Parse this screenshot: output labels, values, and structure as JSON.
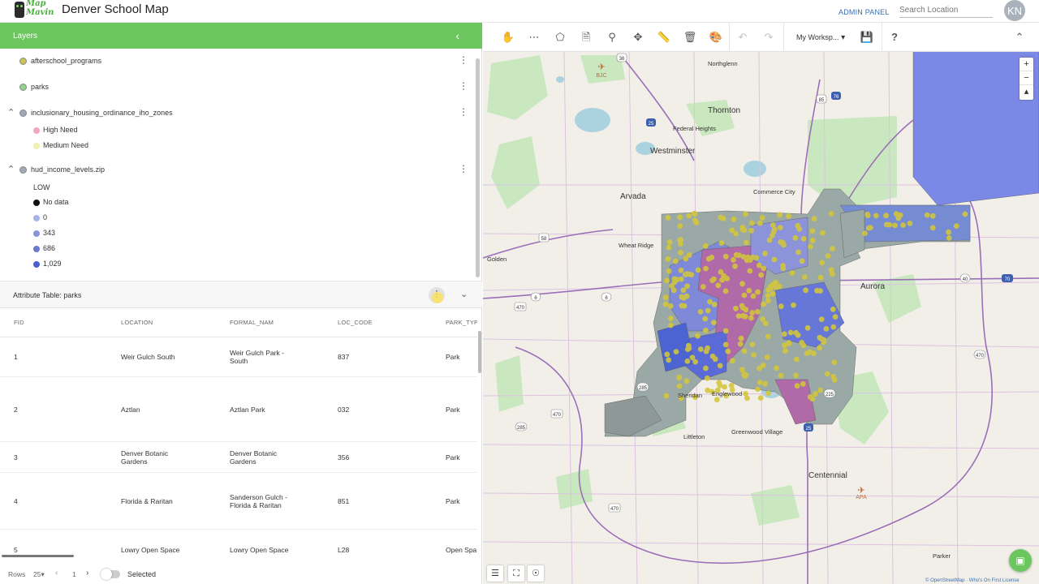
{
  "header": {
    "logo_text": "Map Mavin",
    "title": "Denver School Map",
    "admin_label": "ADMIN PANEL",
    "search_placeholder": "Search Location",
    "avatar_initials": "KN"
  },
  "layers_panel": {
    "title": "Layers",
    "layers": [
      {
        "name": "afterschool_programs",
        "color": "#c9c257"
      },
      {
        "name": "parks",
        "color": "#8fd38a"
      },
      {
        "name": "inclusionary_housing_ordinance_iho_zones",
        "color": "#a3a8b8"
      },
      {
        "name": "hud_income_levels.zip",
        "color": "#a3a8b8"
      }
    ],
    "iho_legend": [
      {
        "label": "High Need",
        "color": "#f2a7c0"
      },
      {
        "label": "Medium Need",
        "color": "#f0f0b0"
      }
    ],
    "hud_legend_title": "LOW",
    "hud_legend": [
      {
        "label": "No data",
        "color": "#111111"
      },
      {
        "label": "0",
        "color": "#a5b4e8"
      },
      {
        "label": "343",
        "color": "#8696dc"
      },
      {
        "label": "686",
        "color": "#6b79cf"
      },
      {
        "label": "1,029",
        "color": "#4a5fd0"
      }
    ]
  },
  "attribute_table": {
    "title": "Attribute Table: parks",
    "columns": [
      "FID",
      "LOCATION",
      "FORMAL_NAM",
      "LOC_CODE",
      "PARK_TYP"
    ],
    "rows": [
      {
        "fid": "1",
        "location": "Weir Gulch South",
        "formal": "Weir Gulch Park - South",
        "code": "837",
        "type": "Park"
      },
      {
        "fid": "2",
        "location": "Aztlan",
        "formal": "Aztlan Park",
        "code": "032",
        "type": "Park"
      },
      {
        "fid": "3",
        "location": "Denver Botanic Gardens",
        "formal": "Denver Botanic Gardens",
        "code": "356",
        "type": "Park"
      },
      {
        "fid": "4",
        "location": "Florida & Raritan",
        "formal": "Sanderson Gulch - Florida & Raritan",
        "code": "851",
        "type": "Park"
      },
      {
        "fid": "5",
        "location": "Lowry Open Space",
        "formal": "Lowry Open Space",
        "code": "L28",
        "type": "Open Spa"
      }
    ],
    "pager": {
      "rows_label": "Rows",
      "rows_value": "25",
      "page": "1",
      "selected_label": "Selected"
    }
  },
  "toolbar": {
    "workspace_label": "My Worksp..."
  },
  "map": {
    "place_labels": [
      "Northglenn",
      "Thornton",
      "Federal Heights",
      "Westminster",
      "Commerce City",
      "Arvada",
      "Wheat Ridge",
      "Golden",
      "Aurora",
      "Englewood",
      "Sheridan",
      "Littleton",
      "Greenwood Village",
      "Centennial",
      "Parker"
    ],
    "airports": [
      "BJC",
      "APA"
    ],
    "highway_shields": [
      "36",
      "85",
      "76",
      "25",
      "58",
      "6",
      "6",
      "470",
      "70",
      "40",
      "225",
      "470",
      "285",
      "470",
      "25",
      "285",
      "470"
    ],
    "attribution": "© OpenStreetMap · Who's On First License"
  }
}
